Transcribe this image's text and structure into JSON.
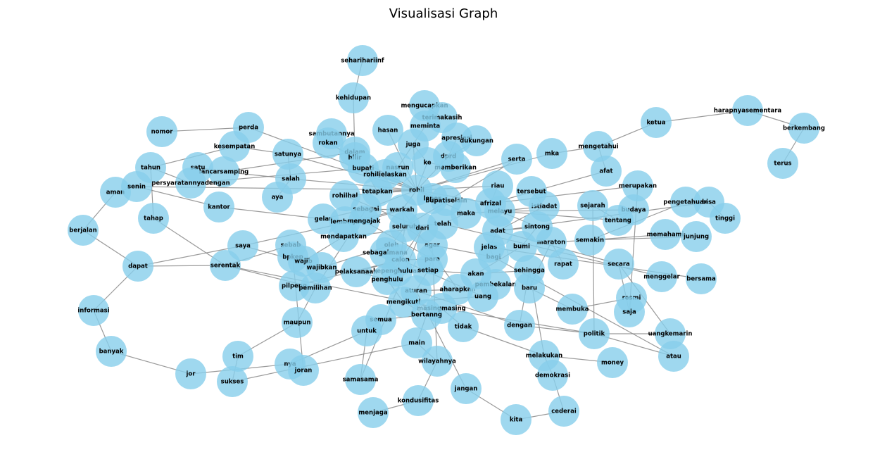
{
  "title": "Visualisasi Graph",
  "colors": {
    "node_fill": "#87ceeb",
    "edge": "#888888",
    "label": "#000000"
  },
  "nodes": [
    "seharihariinf",
    "kehidupan",
    "mengucapkan",
    "terimakasih",
    "meminta",
    "apresiasi",
    "dukungan",
    "hasan",
    "juga",
    "sambutannya",
    "rokan",
    "dalam",
    "hilir",
    "dprd",
    "nasrun",
    "memberikan",
    "ke",
    "bupati",
    "rohiljelaskan",
    "nomor",
    "perda",
    "kesempatan",
    "satunya",
    "satu",
    "lancarsamping",
    "tahun",
    "salah",
    "aman",
    "senin",
    "persyaratannyadengan",
    "kantor",
    "aya",
    "tetapkan",
    "rohil",
    "rohilhal",
    "lapor",
    "bupatiselain",
    "berjalan",
    "tahap",
    "gelar",
    "sebagai",
    "warkah",
    "lembaga",
    "mengajak",
    "maka",
    "telah",
    "seluruh",
    "dari",
    "saya",
    "mendapatkan",
    "sebab",
    "oleh",
    "agar",
    "dapat",
    "serentak",
    "bpkep",
    "wajib",
    "sebagaimana",
    "calon",
    "para",
    "wajibkan",
    "pelaksanaan",
    "kepenghuluan",
    "setiap",
    "penghulu",
    "pilpeng",
    "pemilihan",
    "aturan",
    "aharapkan",
    "akan",
    "pembekalan",
    "uang",
    "informasi",
    "mengikuti",
    "masingmasing",
    "bertanng",
    "semua",
    "maupun",
    "untuk",
    "tidak",
    "tim",
    "main",
    "banyak",
    "jor",
    "nya",
    "joran",
    "sukses",
    "samasama",
    "wilayahnya",
    "kondusifitas",
    "jangan",
    "menjaga",
    "kita",
    "cederai",
    "demokrasi",
    "melakukan",
    "money",
    "dengan",
    "politik",
    "baru",
    "membuka",
    "resmi",
    "saja",
    "atau",
    "uangkemarin",
    "menggelar",
    "secara",
    "bersama",
    "sehingga",
    "rapat",
    "bagi",
    "jelas",
    "bumi",
    "maraton",
    "adat",
    "sintong",
    "semakin",
    "memahami",
    "junjung",
    "tinggi",
    "bisa",
    "pengetahuan",
    "budaya",
    "tentang",
    "sejarah",
    "istiadat",
    "melayu",
    "tersebut",
    "riau",
    "afrizal",
    "merupakan",
    "afat",
    "serta",
    "mka",
    "mengetahui",
    "ketua",
    "harapnyasementara",
    "berkembang",
    "terus"
  ],
  "edges": [
    [
      "seharihariinf",
      "kehidupan"
    ],
    [
      "kehidupan",
      "dalam"
    ],
    [
      "ketua",
      "mengetahui"
    ],
    [
      "ketua",
      "harapnyasementara"
    ],
    [
      "harapnyasementara",
      "berkembang"
    ],
    [
      "berkembang",
      "terus"
    ],
    [
      "nomor",
      "perda"
    ],
    [
      "perda",
      "rohil"
    ],
    [
      "kesempatan",
      "satunya"
    ],
    [
      "kesempatan",
      "tahun"
    ],
    [
      "satunya",
      "rohil"
    ],
    [
      "satu",
      "lancarsamping"
    ],
    [
      "lancarsamping",
      "salah"
    ],
    [
      "lancarsamping",
      "dalam"
    ],
    [
      "tahun",
      "persyaratannyadengan"
    ],
    [
      "tahun",
      "tahap"
    ],
    [
      "persyaratannyadengan",
      "bupati"
    ],
    [
      "aman",
      "senin"
    ],
    [
      "senin",
      "kantor"
    ],
    [
      "senin",
      "rohil"
    ],
    [
      "kantor",
      "gelar"
    ],
    [
      "salah",
      "satunya"
    ],
    [
      "salah",
      "aya"
    ],
    [
      "salah",
      "rohil"
    ],
    [
      "berjalan",
      "aman"
    ],
    [
      "berjalan",
      "dapat"
    ],
    [
      "dapat",
      "informasi"
    ],
    [
      "dapat",
      "saya"
    ],
    [
      "informasi",
      "banyak"
    ],
    [
      "banyak",
      "jor"
    ],
    [
      "jor",
      "nya"
    ],
    [
      "tahap",
      "serentak"
    ],
    [
      "serentak",
      "dapat"
    ],
    [
      "serentak",
      "sebab"
    ],
    [
      "serentak",
      "masingmasing"
    ],
    [
      "serentak",
      "pemilihan"
    ],
    [
      "saya",
      "wajibkan"
    ],
    [
      "saya",
      "warkah"
    ],
    [
      "sebab",
      "bpkep"
    ],
    [
      "bpkep",
      "wajib"
    ],
    [
      "wajib",
      "mendapatkan"
    ],
    [
      "wajibkan",
      "oleh"
    ],
    [
      "pilpeng",
      "pemilihan"
    ],
    [
      "pilpeng",
      "calon"
    ],
    [
      "pemilihan",
      "sebagai"
    ],
    [
      "pelaksanaan",
      "penghulu"
    ],
    [
      "mendapatkan",
      "dari"
    ],
    [
      "rohilhal",
      "dari"
    ],
    [
      "rohilhal",
      "rohil"
    ],
    [
      "gelar",
      "lembaga"
    ],
    [
      "lembaga",
      "mengajak"
    ],
    [
      "mengajak",
      "para"
    ],
    [
      "sebagai",
      "warkah"
    ],
    [
      "sebagai",
      "rohil"
    ],
    [
      "warkah",
      "rohil"
    ],
    [
      "tetapkan",
      "rohil"
    ],
    [
      "tetapkan",
      "dalam"
    ],
    [
      "rohil",
      "bupati"
    ],
    [
      "rohil",
      "dprd"
    ],
    [
      "rohil",
      "ke"
    ],
    [
      "rohil",
      "lapor"
    ],
    [
      "rohil",
      "bupatiselain"
    ],
    [
      "rohil",
      "maka"
    ],
    [
      "rohil",
      "nasrun"
    ],
    [
      "rohil",
      "juga"
    ],
    [
      "rohil",
      "hilir"
    ],
    [
      "rohil",
      "rokan"
    ],
    [
      "rohil",
      "hasan"
    ],
    [
      "rohil",
      "mka"
    ],
    [
      "rohil",
      "afrizal"
    ],
    [
      "rohil",
      "riau"
    ],
    [
      "rohil",
      "serta"
    ],
    [
      "rohiljelaskan",
      "bupati"
    ],
    [
      "bupati",
      "hilir"
    ],
    [
      "hilir",
      "rokan"
    ],
    [
      "rokan",
      "sambutannya"
    ],
    [
      "juga",
      "meminta"
    ],
    [
      "meminta",
      "terimakasih"
    ],
    [
      "mengucapkan",
      "terimakasih"
    ],
    [
      "dprd",
      "apresiasi"
    ],
    [
      "dprd",
      "dukungan"
    ],
    [
      "dprd",
      "memberikan"
    ],
    [
      "memberikan",
      "ke"
    ],
    [
      "ke",
      "juga"
    ],
    [
      "nasrun",
      "juga"
    ],
    [
      "maka",
      "telah"
    ],
    [
      "maka",
      "melayu"
    ],
    [
      "telah",
      "seluruh"
    ],
    [
      "seluruh",
      "warkah"
    ],
    [
      "seluruh",
      "calon"
    ],
    [
      "seluruh",
      "oleh"
    ],
    [
      "seluruh",
      "agar"
    ],
    [
      "agar",
      "para"
    ],
    [
      "agar",
      "bagi"
    ],
    [
      "dari",
      "penghulu"
    ],
    [
      "oleh",
      "calon"
    ],
    [
      "oleh",
      "sebagaimana"
    ],
    [
      "sebagaimana",
      "kepenghuluan"
    ],
    [
      "calon",
      "kepenghuluan"
    ],
    [
      "calon",
      "para"
    ],
    [
      "para",
      "setiap"
    ],
    [
      "setiap",
      "aturan"
    ],
    [
      "setiap",
      "akan"
    ],
    [
      "kepenghuluan",
      "penghulu"
    ],
    [
      "penghulu",
      "mengikuti"
    ],
    [
      "aturan",
      "aharapkan"
    ],
    [
      "aharapkan",
      "pembekalan"
    ],
    [
      "pembekalan",
      "uang"
    ],
    [
      "akan",
      "sehingga"
    ],
    [
      "akan",
      "bumi"
    ],
    [
      "uang",
      "mengikuti"
    ],
    [
      "mengikuti",
      "masingmasing"
    ],
    [
      "mengikuti",
      "bertanng"
    ],
    [
      "bertanng",
      "semua"
    ],
    [
      "masingmasing",
      "tidak"
    ],
    [
      "masingmasing",
      "politik"
    ],
    [
      "semua",
      "untuk"
    ],
    [
      "maupun",
      "pemilihan"
    ],
    [
      "untuk",
      "samasama"
    ],
    [
      "untuk",
      "nya"
    ],
    [
      "tim",
      "maupun"
    ],
    [
      "tim",
      "sukses"
    ],
    [
      "sukses",
      "main"
    ],
    [
      "main",
      "wilayahnya"
    ],
    [
      "main",
      "bertanng"
    ],
    [
      "nya",
      "joran"
    ],
    [
      "joran",
      "bpkep"
    ],
    [
      "samasama",
      "dari"
    ],
    [
      "wilayahnya",
      "kondusifitas"
    ],
    [
      "wilayahnya",
      "agar"
    ],
    [
      "kondusifitas",
      "menjaga"
    ],
    [
      "jangan",
      "kita"
    ],
    [
      "jangan",
      "aturan"
    ],
    [
      "kita",
      "cederai"
    ],
    [
      "cederai",
      "demokrasi"
    ],
    [
      "demokrasi",
      "melakukan"
    ],
    [
      "melakukan",
      "money"
    ],
    [
      "melakukan",
      "sehingga"
    ],
    [
      "tidak",
      "melakukan"
    ],
    [
      "dengan",
      "politik"
    ],
    [
      "dengan",
      "aturan"
    ],
    [
      "politik",
      "uangkemarin"
    ],
    [
      "politik",
      "atau"
    ],
    [
      "politik",
      "sejarah"
    ],
    [
      "uangkemarin",
      "secara"
    ],
    [
      "atau",
      "bagi"
    ],
    [
      "baru",
      "membuka"
    ],
    [
      "baru",
      "maraton"
    ],
    [
      "membuka",
      "resmi"
    ],
    [
      "resmi",
      "saja"
    ],
    [
      "saja",
      "secara"
    ],
    [
      "saja",
      "merupakan"
    ],
    [
      "menggelar",
      "telah"
    ],
    [
      "bersama",
      "jelas"
    ],
    [
      "secara",
      "adat"
    ],
    [
      "sehingga",
      "dengan"
    ],
    [
      "rapat",
      "maraton"
    ],
    [
      "bagi",
      "jelas"
    ],
    [
      "jelas",
      "adat"
    ],
    [
      "bumi",
      "sintong"
    ],
    [
      "maraton",
      "semakin"
    ],
    [
      "semakin",
      "memahami"
    ],
    [
      "semakin",
      "junjung"
    ],
    [
      "semakin",
      "pengetahuan"
    ],
    [
      "adat",
      "istiadat"
    ],
    [
      "adat",
      "sintong"
    ],
    [
      "sintong",
      "melayu"
    ],
    [
      "tinggi",
      "bisa"
    ],
    [
      "bisa",
      "pengetahuan"
    ],
    [
      "bisa",
      "adat"
    ],
    [
      "budaya",
      "tentang"
    ],
    [
      "budaya",
      "melayu"
    ],
    [
      "tentang",
      "melayu"
    ],
    [
      "tentang",
      "sejarah"
    ],
    [
      "istiadat",
      "melayu"
    ],
    [
      "istiadat",
      "tersebut"
    ],
    [
      "melayu",
      "afrizal"
    ],
    [
      "afrizal",
      "riau"
    ],
    [
      "afrizal",
      "merupakan"
    ],
    [
      "afrizal",
      "afat"
    ],
    [
      "serta",
      "seluruh"
    ],
    [
      "mka",
      "mengetahui"
    ],
    [
      "mengetahui",
      "afat"
    ],
    [
      "warkah",
      "mengajak"
    ],
    [
      "gelar",
      "sebagai"
    ],
    [
      "sebagaimana",
      "uang"
    ],
    [
      "pelaksanaan",
      "calon"
    ],
    [
      "aharapkan",
      "warkah"
    ]
  ]
}
